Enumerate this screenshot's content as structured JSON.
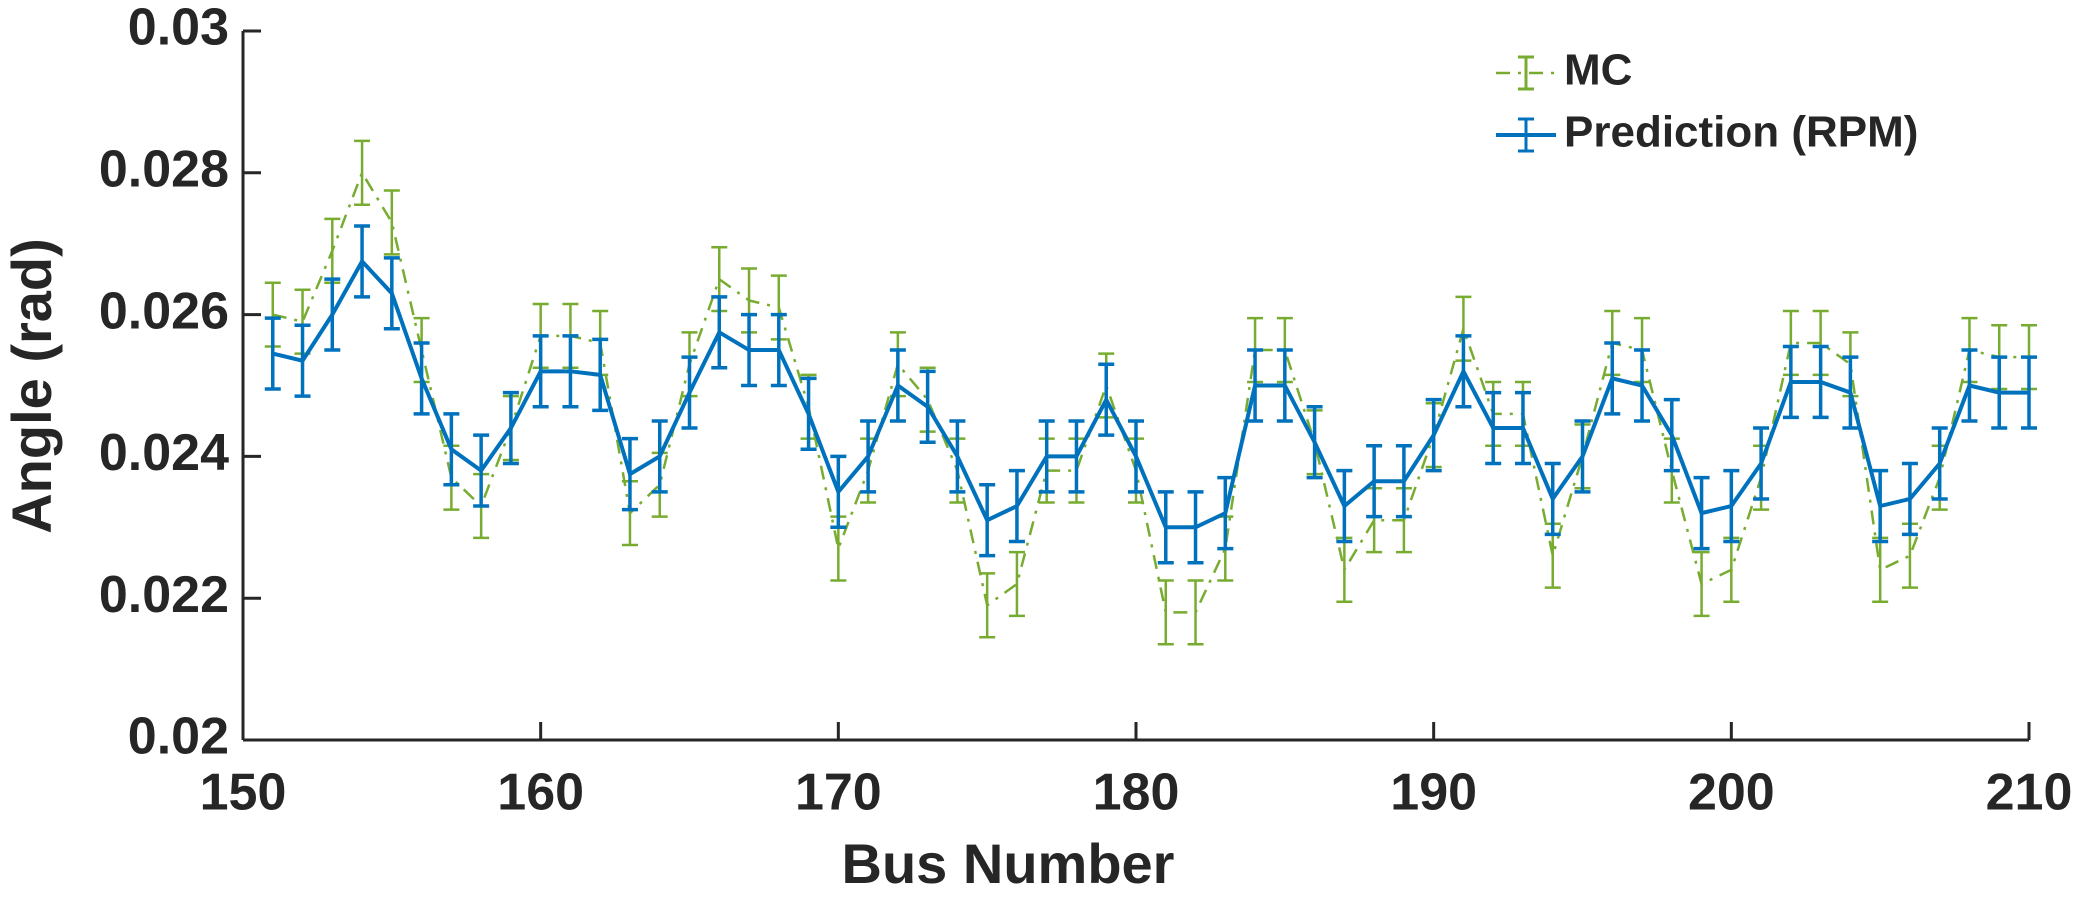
{
  "chart_data": {
    "type": "errorbar-line",
    "xlabel": "Bus Number",
    "ylabel": "Angle (rad)",
    "x": [
      151,
      152,
      153,
      154,
      155,
      156,
      157,
      158,
      159,
      160,
      161,
      162,
      163,
      164,
      165,
      166,
      167,
      168,
      169,
      170,
      171,
      172,
      173,
      174,
      175,
      176,
      177,
      178,
      179,
      180,
      181,
      182,
      183,
      184,
      185,
      186,
      187,
      188,
      189,
      190,
      191,
      192,
      193,
      194,
      195,
      196,
      197,
      198,
      199,
      200,
      201,
      202,
      203,
      204,
      205,
      206,
      207,
      208,
      209,
      210
    ],
    "series": [
      {
        "name": "MC",
        "color": "#77ac30",
        "dash": "dash-dot",
        "error": 0.00045,
        "values": [
          0.026,
          0.0259,
          0.0269,
          0.028,
          0.0273,
          0.0255,
          0.0237,
          0.0233,
          0.0244,
          0.0257,
          0.0257,
          0.0256,
          0.0232,
          0.0236,
          0.0253,
          0.0265,
          0.0262,
          0.0261,
          0.0247,
          0.0227,
          0.0238,
          0.0253,
          0.0248,
          0.0238,
          0.0219,
          0.0222,
          0.0238,
          0.0238,
          0.025,
          0.0238,
          0.0218,
          0.0218,
          0.0227,
          0.0255,
          0.0255,
          0.0242,
          0.0224,
          0.0231,
          0.0231,
          0.0243,
          0.0258,
          0.0246,
          0.0246,
          0.0226,
          0.024,
          0.0256,
          0.0255,
          0.0238,
          0.0222,
          0.0224,
          0.0237,
          0.0256,
          0.0256,
          0.0253,
          0.0224,
          0.0226,
          0.0237,
          0.0255,
          0.0254,
          0.0254
        ]
      },
      {
        "name": "Prediction (RPM)",
        "color": "#0072bd",
        "dash": "solid",
        "error": 0.0005,
        "values": [
          0.02545,
          0.02535,
          0.026,
          0.02675,
          0.0263,
          0.0251,
          0.0241,
          0.0238,
          0.0244,
          0.0252,
          0.0252,
          0.02515,
          0.02375,
          0.024,
          0.0249,
          0.02575,
          0.0255,
          0.0255,
          0.0246,
          0.0235,
          0.024,
          0.025,
          0.0247,
          0.024,
          0.0231,
          0.0233,
          0.024,
          0.024,
          0.0248,
          0.024,
          0.023,
          0.023,
          0.0232,
          0.025,
          0.025,
          0.0242,
          0.0233,
          0.02365,
          0.02365,
          0.0243,
          0.0252,
          0.0244,
          0.0244,
          0.0234,
          0.024,
          0.0251,
          0.025,
          0.0243,
          0.0232,
          0.0233,
          0.0239,
          0.02505,
          0.02505,
          0.0249,
          0.0233,
          0.0234,
          0.0239,
          0.025,
          0.0249,
          0.0249
        ]
      }
    ],
    "xlim": [
      150,
      210
    ],
    "xticks": [
      150,
      160,
      170,
      180,
      190,
      200,
      210
    ],
    "ylim": [
      0.02,
      0.03
    ],
    "yticks": [
      0.02,
      0.022,
      0.024,
      0.026,
      0.028,
      0.03
    ],
    "legend": "top-right"
  }
}
